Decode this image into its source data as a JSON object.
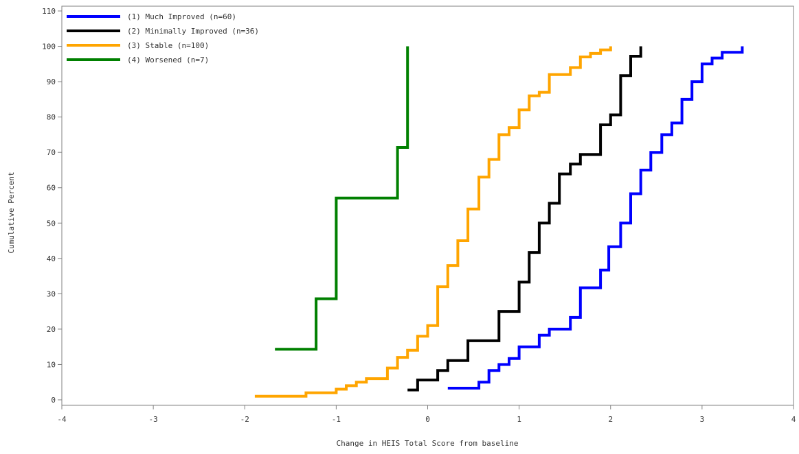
{
  "chart_data": {
    "type": "line",
    "step": true,
    "title": "",
    "xlabel": "Change in HEIS Total Score from baseline",
    "ylabel": "Cumulative Percent",
    "xlim": [
      -4,
      4
    ],
    "ylim": [
      0,
      110
    ],
    "xticks": [
      "-4",
      "-3",
      "-2",
      "-1",
      "0",
      "1",
      "2",
      "3",
      "4"
    ],
    "yticks": [
      "0",
      "10",
      "20",
      "30",
      "40",
      "50",
      "60",
      "70",
      "80",
      "90",
      "100",
      "110"
    ],
    "grid": false,
    "legend_position": "top-left",
    "series": [
      {
        "name": "(1) Much Improved (n=60)",
        "color": "#0000ff",
        "points": [
          [
            0.22,
            3.3
          ],
          [
            0.56,
            3.3
          ],
          [
            0.56,
            5
          ],
          [
            0.67,
            5
          ],
          [
            0.67,
            8.3
          ],
          [
            0.78,
            8.3
          ],
          [
            0.78,
            10
          ],
          [
            0.89,
            10
          ],
          [
            0.89,
            11.7
          ],
          [
            1.0,
            11.7
          ],
          [
            1.0,
            15
          ],
          [
            1.22,
            15
          ],
          [
            1.22,
            18.3
          ],
          [
            1.33,
            18.3
          ],
          [
            1.33,
            20
          ],
          [
            1.56,
            20
          ],
          [
            1.56,
            23.3
          ],
          [
            1.67,
            23.3
          ],
          [
            1.67,
            31.7
          ],
          [
            1.89,
            31.7
          ],
          [
            1.89,
            36.7
          ],
          [
            1.98,
            36.7
          ],
          [
            1.98,
            43.3
          ],
          [
            2.11,
            43.3
          ],
          [
            2.11,
            50
          ],
          [
            2.22,
            50
          ],
          [
            2.22,
            58.3
          ],
          [
            2.33,
            58.3
          ],
          [
            2.33,
            65
          ],
          [
            2.44,
            65
          ],
          [
            2.44,
            70
          ],
          [
            2.56,
            70
          ],
          [
            2.56,
            75
          ],
          [
            2.67,
            75
          ],
          [
            2.67,
            78.3
          ],
          [
            2.78,
            78.3
          ],
          [
            2.78,
            85
          ],
          [
            2.89,
            85
          ],
          [
            2.89,
            90
          ],
          [
            3.0,
            90
          ],
          [
            3.0,
            95
          ],
          [
            3.11,
            95
          ],
          [
            3.11,
            96.7
          ],
          [
            3.22,
            96.7
          ],
          [
            3.22,
            98.3
          ],
          [
            3.44,
            98.3
          ],
          [
            3.44,
            100
          ]
        ]
      },
      {
        "name": "(2) Minimally Improved (n=36)",
        "color": "#000000",
        "points": [
          [
            -0.22,
            2.8
          ],
          [
            -0.11,
            2.8
          ],
          [
            -0.11,
            5.6
          ],
          [
            0.11,
            5.6
          ],
          [
            0.11,
            8.3
          ],
          [
            0.22,
            8.3
          ],
          [
            0.22,
            11.1
          ],
          [
            0.44,
            11.1
          ],
          [
            0.44,
            16.7
          ],
          [
            0.78,
            16.7
          ],
          [
            0.78,
            25
          ],
          [
            1.0,
            25
          ],
          [
            1.0,
            33.3
          ],
          [
            1.11,
            33.3
          ],
          [
            1.11,
            41.7
          ],
          [
            1.22,
            41.7
          ],
          [
            1.22,
            50
          ],
          [
            1.33,
            50
          ],
          [
            1.33,
            55.6
          ],
          [
            1.44,
            55.6
          ],
          [
            1.44,
            63.9
          ],
          [
            1.56,
            63.9
          ],
          [
            1.56,
            66.7
          ],
          [
            1.67,
            66.7
          ],
          [
            1.67,
            69.4
          ],
          [
            1.89,
            69.4
          ],
          [
            1.89,
            77.8
          ],
          [
            2.0,
            77.8
          ],
          [
            2.0,
            80.6
          ],
          [
            2.11,
            80.6
          ],
          [
            2.11,
            91.7
          ],
          [
            2.22,
            91.7
          ],
          [
            2.22,
            97.2
          ],
          [
            2.33,
            97.2
          ],
          [
            2.33,
            100
          ]
        ]
      },
      {
        "name": "(3) Stable (n=100)",
        "color": "#ffa500",
        "points": [
          [
            -1.89,
            1
          ],
          [
            -1.33,
            1
          ],
          [
            -1.33,
            2
          ],
          [
            -1.0,
            2
          ],
          [
            -1.0,
            3
          ],
          [
            -0.89,
            3
          ],
          [
            -0.89,
            4
          ],
          [
            -0.78,
            4
          ],
          [
            -0.78,
            5
          ],
          [
            -0.67,
            5
          ],
          [
            -0.67,
            6
          ],
          [
            -0.44,
            6
          ],
          [
            -0.44,
            9
          ],
          [
            -0.33,
            9
          ],
          [
            -0.33,
            12
          ],
          [
            -0.22,
            12
          ],
          [
            -0.22,
            14
          ],
          [
            -0.11,
            14
          ],
          [
            -0.11,
            18
          ],
          [
            0.0,
            18
          ],
          [
            0.0,
            21
          ],
          [
            0.11,
            21
          ],
          [
            0.11,
            32
          ],
          [
            0.22,
            32
          ],
          [
            0.22,
            38
          ],
          [
            0.33,
            38
          ],
          [
            0.33,
            45
          ],
          [
            0.44,
            45
          ],
          [
            0.44,
            54
          ],
          [
            0.56,
            54
          ],
          [
            0.56,
            63
          ],
          [
            0.67,
            63
          ],
          [
            0.67,
            68
          ],
          [
            0.78,
            68
          ],
          [
            0.78,
            75
          ],
          [
            0.89,
            75
          ],
          [
            0.89,
            77
          ],
          [
            1.0,
            77
          ],
          [
            1.0,
            82
          ],
          [
            1.11,
            82
          ],
          [
            1.11,
            86
          ],
          [
            1.22,
            86
          ],
          [
            1.22,
            87
          ],
          [
            1.33,
            87
          ],
          [
            1.33,
            92
          ],
          [
            1.56,
            92
          ],
          [
            1.56,
            94
          ],
          [
            1.67,
            94
          ],
          [
            1.67,
            97
          ],
          [
            1.78,
            97
          ],
          [
            1.78,
            98
          ],
          [
            1.89,
            98
          ],
          [
            1.89,
            99
          ],
          [
            2.0,
            99
          ],
          [
            2.0,
            100
          ]
        ]
      },
      {
        "name": "(4) Worsened (n=7)",
        "color": "#008000",
        "points": [
          [
            -1.67,
            14.3
          ],
          [
            -1.22,
            14.3
          ],
          [
            -1.22,
            28.6
          ],
          [
            -1.0,
            28.6
          ],
          [
            -1.0,
            57.1
          ],
          [
            -0.33,
            57.1
          ],
          [
            -0.33,
            71.4
          ],
          [
            -0.22,
            71.4
          ],
          [
            -0.22,
            100
          ]
        ]
      }
    ]
  }
}
